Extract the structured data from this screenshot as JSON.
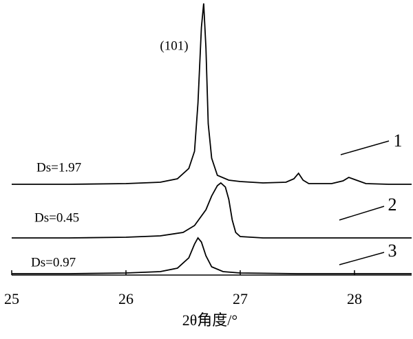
{
  "chart_data": {
    "type": "line",
    "xlabel": "2θ角度/°",
    "xlim": [
      25,
      28.5
    ],
    "xticks": [
      25,
      26,
      27,
      28
    ],
    "ylim": [
      0,
      400
    ],
    "annotations": [
      "(101)",
      "Ds=1.97",
      "Ds=0.45",
      "Ds=0.97"
    ],
    "series": [
      {
        "name": "1",
        "color": "#000000",
        "x": [
          25,
          25.5,
          26,
          26.3,
          26.45,
          26.55,
          26.6,
          26.63,
          26.66,
          26.68,
          26.7,
          26.72,
          26.75,
          26.8,
          26.9,
          27.0,
          27.2,
          27.4,
          27.47,
          27.51,
          27.55,
          27.6,
          27.8,
          27.9,
          27.95,
          28.0,
          28.1,
          28.3,
          28.5
        ],
        "values": [
          132,
          132,
          133,
          135,
          140,
          155,
          180,
          250,
          360,
          395,
          330,
          220,
          170,
          145,
          138,
          136,
          134,
          135,
          140,
          148,
          138,
          133,
          133,
          137,
          142,
          139,
          133,
          132,
          132
        ]
      },
      {
        "name": "2",
        "color": "#000000",
        "x": [
          25,
          25.5,
          26,
          26.3,
          26.5,
          26.6,
          26.7,
          26.75,
          26.8,
          26.83,
          26.87,
          26.9,
          26.93,
          26.96,
          27.0,
          27.2,
          27.6,
          28,
          28.5
        ],
        "values": [
          54,
          54,
          55,
          57,
          62,
          72,
          95,
          115,
          130,
          134,
          128,
          110,
          80,
          62,
          56,
          54,
          54,
          54,
          54
        ]
      },
      {
        "name": "3",
        "color": "#000000",
        "x": [
          25,
          25.5,
          26,
          26.3,
          26.45,
          26.55,
          26.6,
          26.63,
          26.66,
          26.7,
          26.75,
          26.85,
          27,
          27.5,
          28,
          28.5
        ],
        "values": [
          2,
          2,
          3,
          5,
          10,
          25,
          45,
          54,
          48,
          28,
          12,
          5,
          3,
          2,
          2,
          2
        ]
      }
    ]
  }
}
